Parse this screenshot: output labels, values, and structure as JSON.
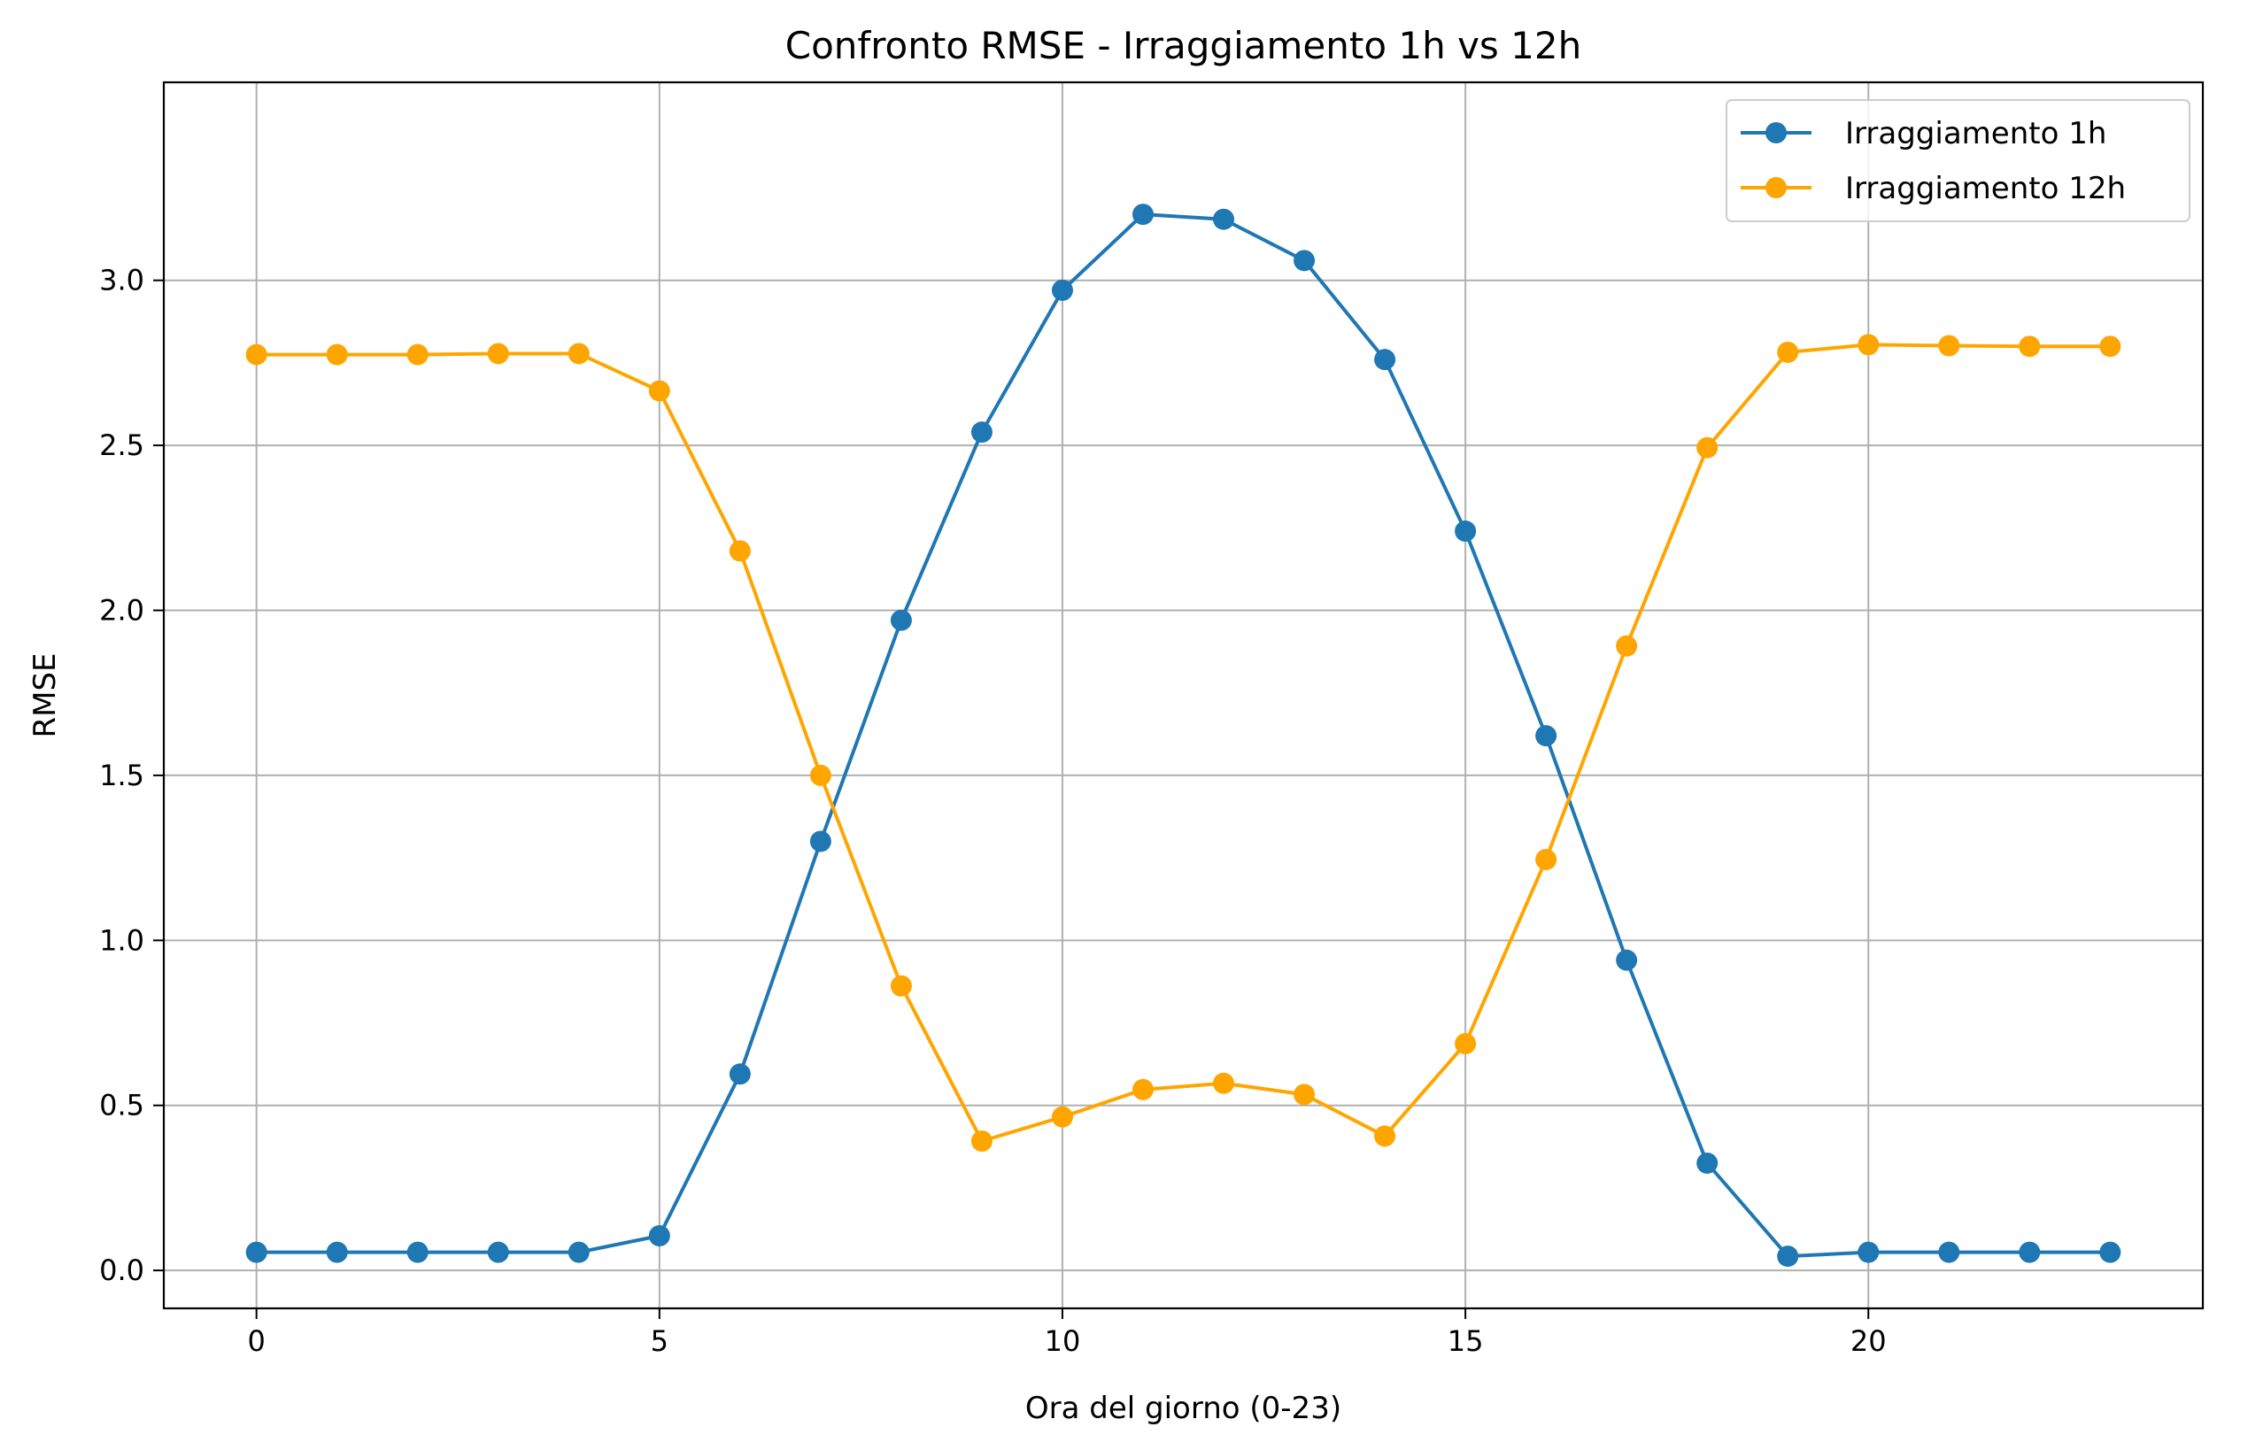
{
  "chart_data": {
    "type": "line",
    "title": "Confronto RMSE - Irraggiamento 1h vs 12h",
    "xlabel": "Ora del giorno (0-23)",
    "ylabel": "RMSE",
    "xlim": [
      -1.15,
      24.15
    ],
    "ylim": [
      -0.115,
      3.6
    ],
    "xticks": [
      0,
      5,
      10,
      15,
      20
    ],
    "yticks": [
      0.0,
      0.5,
      1.0,
      1.5,
      2.0,
      2.5,
      3.0
    ],
    "ytick_labels": [
      "0.0",
      "0.5",
      "1.0",
      "1.5",
      "2.0",
      "2.5",
      "3.0"
    ],
    "grid": true,
    "legend_position": "top-right",
    "x": [
      0,
      1,
      2,
      3,
      4,
      5,
      6,
      7,
      8,
      9,
      10,
      11,
      12,
      13,
      14,
      15,
      16,
      17,
      18,
      19,
      20,
      21,
      22,
      23
    ],
    "series": [
      {
        "name": "Irraggiamento 1h",
        "color": "#1f77b4",
        "values": [
          0.055,
          0.055,
          0.055,
          0.055,
          0.055,
          0.105,
          0.595,
          1.3,
          1.97,
          2.54,
          2.97,
          3.2,
          3.185,
          3.06,
          2.76,
          2.24,
          1.62,
          0.94,
          0.325,
          0.043,
          0.055,
          0.055,
          0.055,
          0.055
        ]
      },
      {
        "name": "Irraggiamento 12h",
        "color": "#ffa500",
        "values": [
          2.775,
          2.775,
          2.775,
          2.778,
          2.778,
          2.665,
          2.18,
          1.5,
          0.862,
          0.392,
          0.465,
          0.548,
          0.567,
          0.533,
          0.407,
          0.687,
          1.245,
          1.892,
          2.493,
          2.782,
          2.805,
          2.802,
          2.8,
          2.8
        ]
      }
    ]
  }
}
